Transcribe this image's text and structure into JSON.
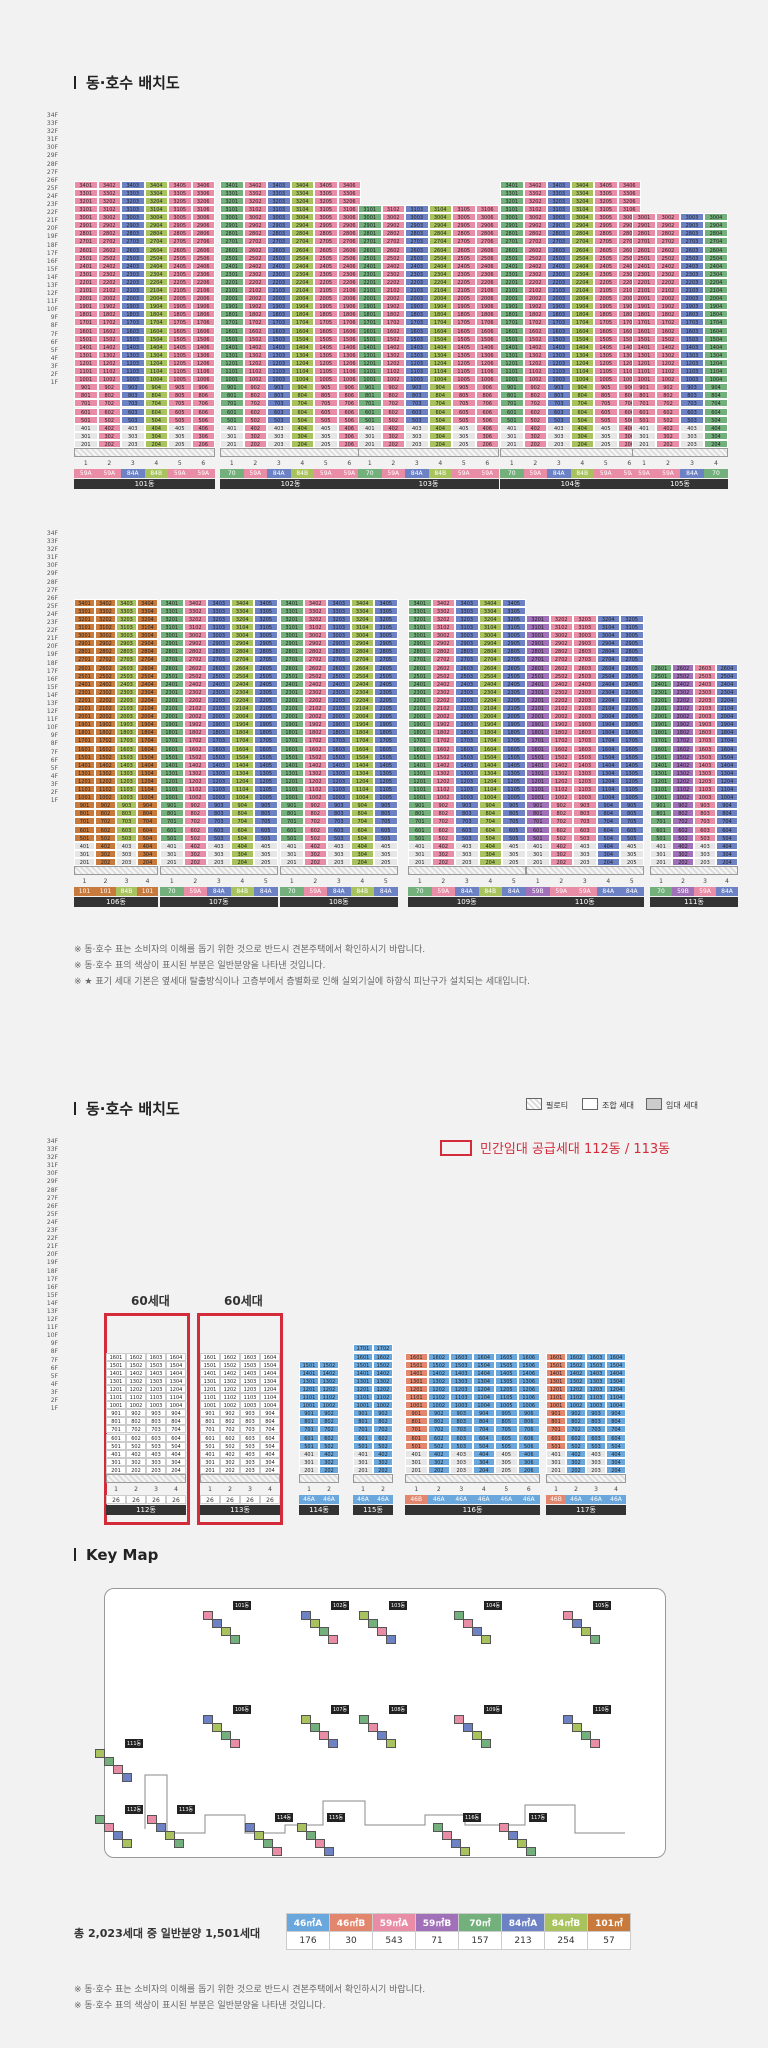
{
  "top": {
    "title": "동·호수 배치도",
    "notes": [
      "※ 동·호수 표는 소비자의 이해를 돕기 위한 것으로 반드시 견본주택에서 확인하시기 바랍니다.",
      "※ 동·호수 표의 색상이 표시된 부분은 일반분양을 나타낸 것입니다.",
      "※ ★ 표기 세대 기본은 옆세대 탈출방식이나 고층부에서 층별화로 인해 실외기실에 하향식 피난구가 설치되는 세대입니다."
    ],
    "floors": [
      "34F",
      "33F",
      "32F",
      "31F",
      "30F",
      "29F",
      "28F",
      "27F",
      "26F",
      "25F",
      "24F",
      "23F",
      "22F",
      "21F",
      "20F",
      "19F",
      "18F",
      "17F",
      "16F",
      "15F",
      "14F",
      "13F",
      "12F",
      "11F",
      "10F",
      "9F",
      "8F",
      "7F",
      "6F",
      "5F",
      "4F",
      "3F",
      "2F",
      "1F"
    ],
    "row1": [
      {
        "dong": "101동",
        "cols": [
          "1",
          "2",
          "3",
          "4",
          "5",
          "6"
        ],
        "types": [
          "59A",
          "59A",
          "84A",
          "84B",
          "59A",
          "59A"
        ]
      },
      {
        "dong": "102동",
        "cols": [
          "1",
          "2",
          "3",
          "4",
          "5",
          "6"
        ],
        "types": [
          "70",
          "59A",
          "84A",
          "84B",
          "59A",
          "59A"
        ]
      },
      {
        "dong": "103동",
        "cols": [
          "1",
          "2",
          "3",
          "4",
          "5",
          "6"
        ],
        "types": [
          "70",
          "59A",
          "84A",
          "84B",
          "59A",
          "59A"
        ]
      },
      {
        "dong": "104동",
        "cols": [
          "1",
          "2",
          "3",
          "4",
          "5",
          "6"
        ],
        "types": [
          "70",
          "59A",
          "84A",
          "84B",
          "59A",
          "59A"
        ]
      },
      {
        "dong": "105동",
        "cols": [
          "1",
          "2",
          "3",
          "4"
        ],
        "types": [
          "59A",
          "59A",
          "84A",
          "70"
        ]
      }
    ],
    "row2": [
      {
        "dong": "106동",
        "cols": [
          "1",
          "2",
          "3",
          "4"
        ],
        "types": [
          "101",
          "101",
          "84B",
          "101"
        ]
      },
      {
        "dong": "107동",
        "cols": [
          "1",
          "2",
          "3",
          "4",
          "5"
        ],
        "types": [
          "70",
          "59A",
          "84A",
          "84B",
          "84A"
        ]
      },
      {
        "dong": "108동",
        "cols": [
          "1",
          "2",
          "3",
          "4",
          "5"
        ],
        "types": [
          "70",
          "59A",
          "84A",
          "84B",
          "84A"
        ]
      },
      {
        "dong": "109동",
        "cols": [
          "1",
          "2",
          "3",
          "4",
          "5"
        ],
        "types": [
          "70",
          "59A",
          "84A",
          "84B",
          "84A"
        ]
      },
      {
        "dong": "110동",
        "cols": [
          "1",
          "2",
          "3",
          "4",
          "5"
        ],
        "types": [
          "59B",
          "59A",
          "59A",
          "84A",
          "84A"
        ]
      },
      {
        "dong": "111동",
        "cols": [
          "1",
          "2",
          "3",
          "4"
        ],
        "types": [
          "70",
          "59B",
          "59A",
          "84A"
        ]
      }
    ]
  },
  "bottom": {
    "title": "동·호수 배치도",
    "legend": {
      "pilotis": "필로티",
      "union": "조합 세대",
      "rental": "임대 세대"
    },
    "private_rental": "민간임대 공급세대 112동 / 113동",
    "gen_label_112": "60세대",
    "gen_label_113": "60세대",
    "floors": [
      "34F",
      "33F",
      "32F",
      "31F",
      "30F",
      "29F",
      "28F",
      "27F",
      "26F",
      "25F",
      "24F",
      "23F",
      "22F",
      "21F",
      "20F",
      "19F",
      "18F",
      "17F",
      "16F",
      "15F",
      "14F",
      "13F",
      "12F",
      "11F",
      "10F",
      "9F",
      "8F",
      "7F",
      "6F",
      "5F",
      "4F",
      "3F",
      "2F",
      "1F"
    ],
    "bldgs": [
      {
        "dong": "112동",
        "cols": [
          "1",
          "2",
          "3",
          "4"
        ],
        "types": [
          "26",
          "26",
          "26",
          "26"
        ]
      },
      {
        "dong": "113동",
        "cols": [
          "1",
          "2",
          "3",
          "4"
        ],
        "types": [
          "26",
          "26",
          "26",
          "26"
        ]
      },
      {
        "dong": "114동",
        "cols": [
          "1",
          "2"
        ],
        "types": [
          "46A",
          "46A"
        ]
      },
      {
        "dong": "115동",
        "cols": [
          "1",
          "2"
        ],
        "types": [
          "46A",
          "46A"
        ]
      },
      {
        "dong": "116동",
        "cols": [
          "1",
          "2",
          "3",
          "4",
          "5",
          "6"
        ],
        "types": [
          "46B",
          "46A",
          "46A",
          "46A",
          "46A",
          "46A"
        ]
      },
      {
        "dong": "117동",
        "cols": [
          "1",
          "2",
          "3",
          "4"
        ],
        "types": [
          "46B",
          "46A",
          "46A",
          "46A"
        ]
      }
    ],
    "keymap_title": "Key Map",
    "keymap_labels": [
      "101동",
      "102동",
      "103동",
      "104동",
      "105동",
      "106동",
      "107동",
      "108동",
      "109동",
      "110동",
      "111동",
      "112동",
      "113동",
      "114동",
      "115동",
      "116동",
      "117동"
    ],
    "summary_text": "총 2,023세대 중 일반분양 1,501세대",
    "summary_types": [
      "46㎡A",
      "46㎡B",
      "59㎡A",
      "59㎡B",
      "70㎡",
      "84㎡A",
      "84㎡B",
      "101㎡"
    ],
    "summary_counts": [
      "176",
      "30",
      "543",
      "71",
      "157",
      "213",
      "254",
      "57"
    ],
    "summary_colors": [
      "#6aa7dc",
      "#e3866e",
      "#e98ca6",
      "#a070b8",
      "#73b07c",
      "#6c82c4",
      "#a8c25e",
      "#c8793c"
    ],
    "notes": [
      "※ 동·호수 표는 소비자의 이해를 돕기 위한 것으로 반드시 견본주택에서 확인하시기 바랍니다.",
      "※ 동·호수 표의 색상이 표시된 부분은 일반분양을 나타낸 것입니다."
    ]
  }
}
